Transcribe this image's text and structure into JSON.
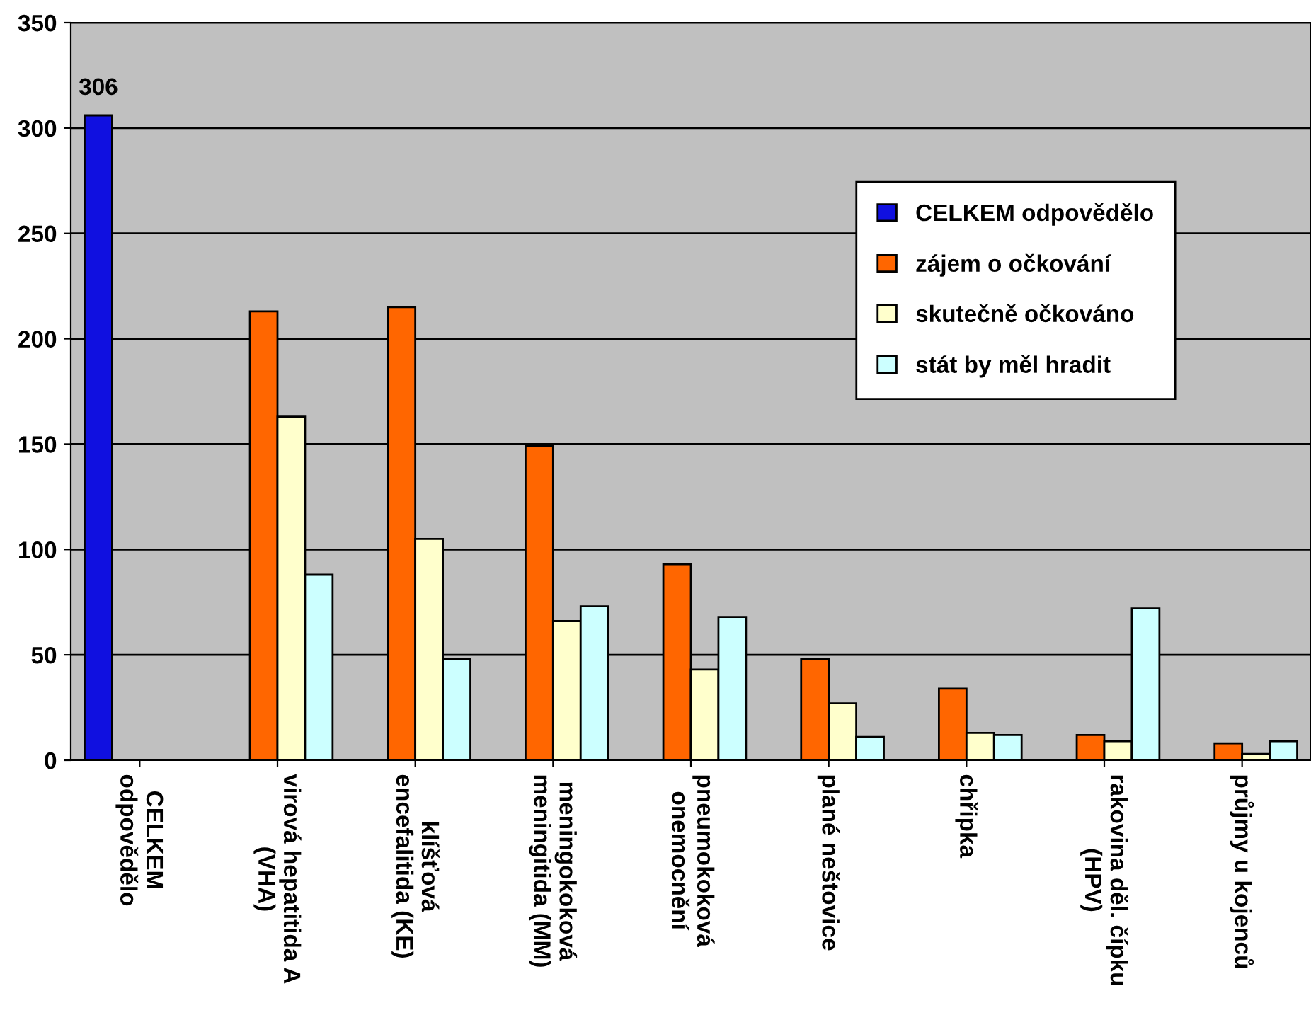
{
  "chart_data": {
    "type": "bar",
    "categories": [
      "CELKEM\nodpovědělo",
      "virová hepatitida A\n(VHA)",
      "klíšťová\nencefalitida (KE)",
      "meningokoková\nmeningitida (MM)",
      "pneumokoková\nonemocnění",
      "plané neštovice",
      "chřipka",
      "rakovina děl. čípku\n(HPV)",
      "průjmy u kojenců"
    ],
    "series": [
      {
        "name": "CELKEM odpovědělo",
        "color": "#1010e0",
        "values": [
          306,
          null,
          null,
          null,
          null,
          null,
          null,
          null,
          null
        ],
        "value_labels": [
          "306",
          null,
          null,
          null,
          null,
          null,
          null,
          null,
          null
        ]
      },
      {
        "name": "zájem o očkování",
        "color": "#ff6600",
        "values": [
          null,
          213,
          215,
          149,
          93,
          48,
          34,
          12,
          8
        ]
      },
      {
        "name": "skutečně očkováno",
        "color": "#ffffcc",
        "values": [
          null,
          163,
          105,
          66,
          43,
          27,
          13,
          9,
          3
        ]
      },
      {
        "name": "stát by měl hradit",
        "color": "#ccffff",
        "values": [
          null,
          88,
          48,
          73,
          68,
          11,
          12,
          72,
          9
        ]
      }
    ],
    "ylim": [
      0,
      350
    ],
    "yticks": [
      0,
      50,
      100,
      150,
      200,
      250,
      300,
      350
    ],
    "grid": "y",
    "legend": "top right"
  }
}
